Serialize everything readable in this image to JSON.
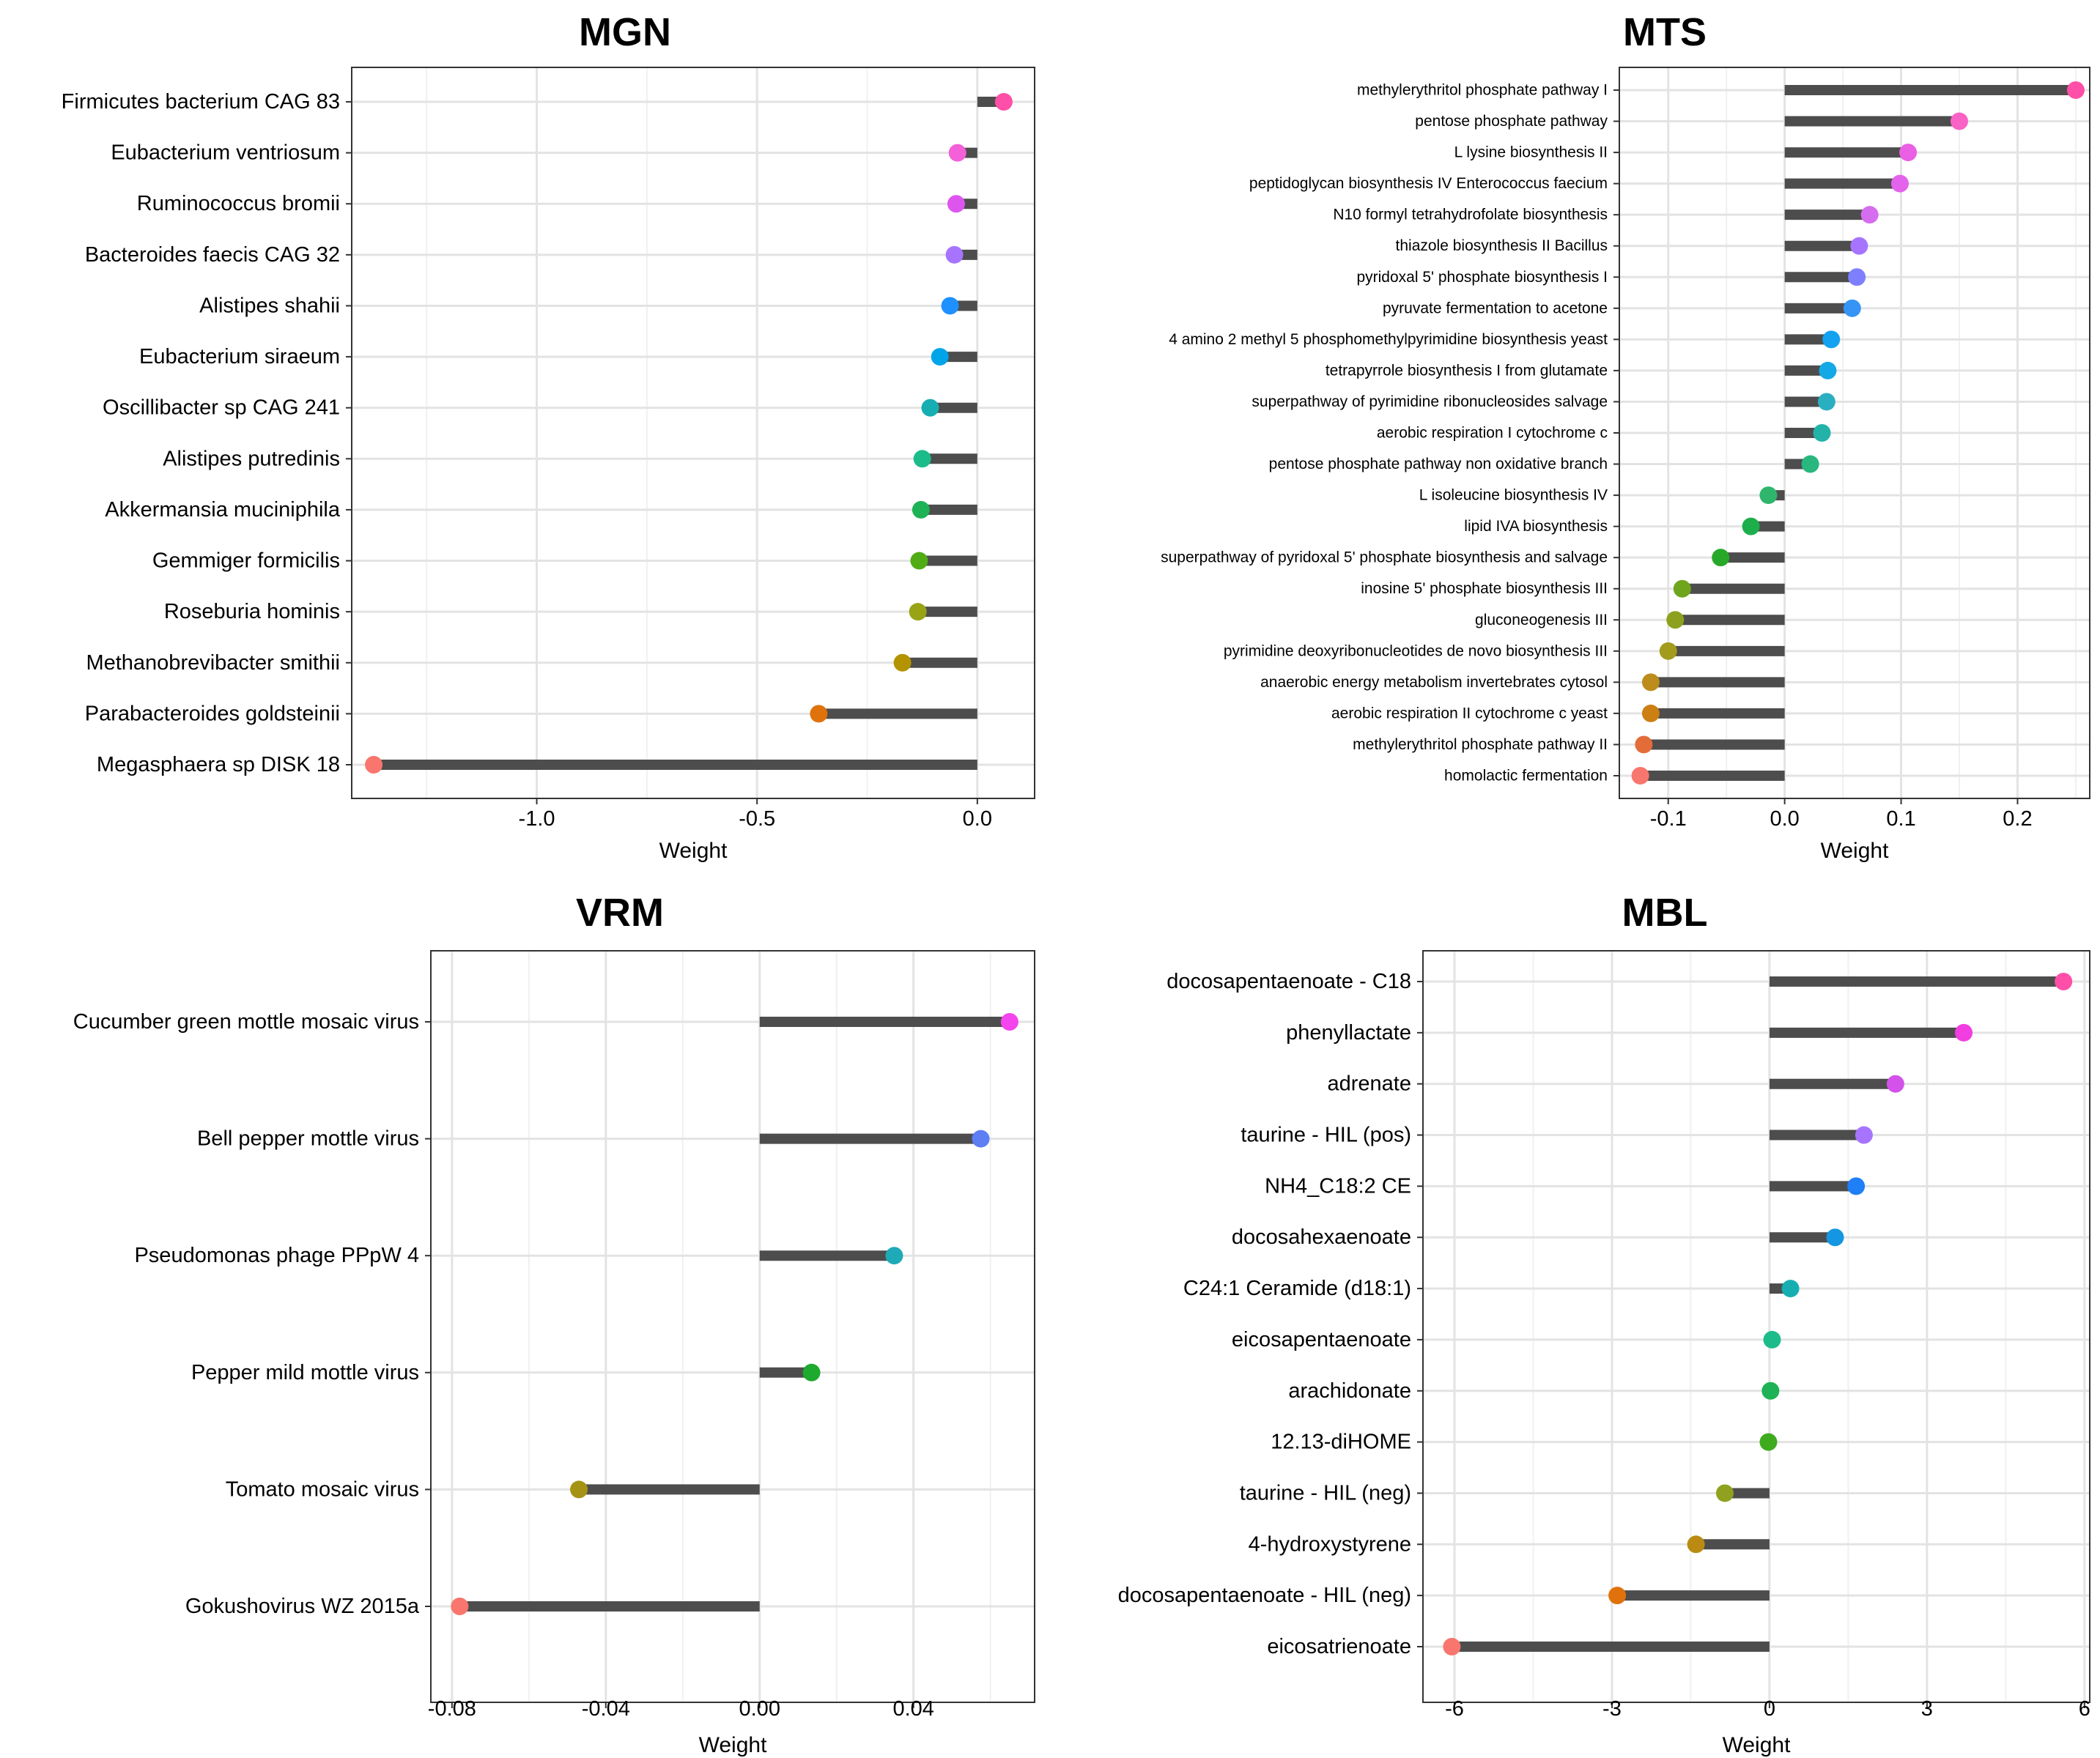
{
  "chart_data": [
    {
      "type": "lollipop",
      "title": "MGN",
      "xlabel": "Weight",
      "ylabel": "",
      "xlim": [
        -1.42,
        0.13
      ],
      "xticks": [
        -1.0,
        -0.5,
        0.0
      ],
      "xtick_labels": [
        "-1.0",
        "-0.5",
        "0.0"
      ],
      "grid": true,
      "categories": [
        "Firmicutes bacterium CAG 83",
        "Eubacterium ventriosum",
        "Ruminococcus bromii",
        "Bacteroides faecis CAG 32",
        "Alistipes shahii",
        "Eubacterium siraeum",
        "Oscillibacter sp CAG 241",
        "Alistipes putredinis",
        "Akkermansia muciniphila",
        "Gemmiger formicilis",
        "Roseburia hominis",
        "Methanobrevibacter smithii",
        "Parabacteroides goldsteinii",
        "Megasphaera sp DISK 18"
      ],
      "values": [
        0.06,
        -0.045,
        -0.048,
        -0.052,
        -0.062,
        -0.085,
        -0.107,
        -0.125,
        -0.128,
        -0.132,
        -0.135,
        -0.17,
        -0.36,
        -1.37
      ],
      "colors": [
        "#FF4FA8",
        "#F460D8",
        "#DD55EE",
        "#A774FF",
        "#1E90FF",
        "#00A4E9",
        "#17AEB2",
        "#1BBC8A",
        "#1DB255",
        "#50AC14",
        "#98A316",
        "#B39300",
        "#E0720B",
        "#F8766D"
      ]
    },
    {
      "type": "lollipop",
      "title": "MTS",
      "xlabel": "Weight",
      "ylabel": "",
      "xlim": [
        -0.142,
        0.262
      ],
      "xticks": [
        -0.1,
        0.0,
        0.1,
        0.2
      ],
      "xtick_labels": [
        "-0.1",
        "0.0",
        "0.1",
        "0.2"
      ],
      "grid": true,
      "categories": [
        "methylerythritol phosphate pathway I",
        "pentose phosphate pathway",
        "L lysine biosynthesis II",
        "peptidoglycan biosynthesis IV Enterococcus faecium",
        "N10 formyl tetrahydrofolate biosynthesis",
        "thiazole biosynthesis II Bacillus",
        "pyridoxal 5' phosphate biosynthesis I",
        "pyruvate fermentation to acetone",
        "4 amino 2 methyl 5 phosphomethylpyrimidine biosynthesis yeast",
        "tetrapyrrole biosynthesis I from glutamate",
        "superpathway of pyrimidine ribonucleosides salvage",
        "aerobic respiration I cytochrome c",
        "pentose phosphate pathway non oxidative branch",
        "L isoleucine biosynthesis IV",
        "lipid IVA biosynthesis",
        "superpathway of pyridoxal 5' phosphate biosynthesis and salvage",
        "inosine 5' phosphate biosynthesis III",
        "gluconeogenesis III",
        "pyrimidine deoxyribonucleotides de novo biosynthesis III",
        "anaerobic energy metabolism invertebrates  cytosol",
        "aerobic respiration II cytochrome c yeast",
        "methylerythritol phosphate pathway II",
        "homolactic fermentation"
      ],
      "values": [
        0.25,
        0.15,
        0.106,
        0.099,
        0.073,
        0.064,
        0.062,
        0.058,
        0.04,
        0.037,
        0.036,
        0.032,
        0.022,
        -0.014,
        -0.029,
        -0.055,
        -0.088,
        -0.094,
        -0.1,
        -0.115,
        -0.115,
        -0.121,
        -0.124
      ],
      "colors": [
        "#FF4FA8",
        "#F963C6",
        "#EA5FE3",
        "#E463EC",
        "#D56DEF",
        "#A774FF",
        "#7E7FFF",
        "#3594F5",
        "#12A2F0",
        "#13A9E7",
        "#2AAFC0",
        "#22B2A8",
        "#28B77F",
        "#30B56C",
        "#1DAE4C",
        "#27A828",
        "#6FA51D",
        "#8EA11E",
        "#A29B1C",
        "#BD8D1C",
        "#CC7F12",
        "#E46C38",
        "#F8766D"
      ]
    },
    {
      "type": "lollipop",
      "title": "VRM",
      "xlabel": "Weight",
      "ylabel": "",
      "xlim": [
        -0.0855,
        0.0715
      ],
      "xticks": [
        -0.08,
        -0.04,
        0.0,
        0.04
      ],
      "xtick_labels": [
        "-0.08",
        "-0.04",
        "0.00",
        "0.04"
      ],
      "grid": true,
      "categories": [
        "Cucumber green mottle mosaic virus",
        "Bell pepper mottle virus",
        "Pseudomonas phage PPpW 4",
        "Pepper mild mottle virus",
        "Tomato mosaic virus",
        "Gokushovirus WZ 2015a"
      ],
      "values": [
        0.065,
        0.0575,
        0.035,
        0.0135,
        -0.047,
        -0.078
      ],
      "colors": [
        "#F444EE",
        "#5C7FF4",
        "#1FAAB8",
        "#1DAA2E",
        "#A69313",
        "#F8766D"
      ]
    },
    {
      "type": "lollipop",
      "title": "MBL",
      "xlabel": "Weight",
      "ylabel": "",
      "xlim": [
        -6.6,
        6.1
      ],
      "xticks": [
        -6,
        -3,
        0,
        3,
        6
      ],
      "xtick_labels": [
        "-6",
        "-3",
        "0",
        "3",
        "6"
      ],
      "grid": true,
      "categories": [
        "docosapentaenoate - C18",
        "phenyllactate",
        "adrenate",
        "taurine - HIL (pos)",
        "NH4_C18:2 CE",
        "docosahexaenoate",
        "C24:1 Ceramide (d18:1)",
        "eicosapentaenoate",
        "arachidonate",
        "12.13-diHOME",
        "taurine - HIL (neg)",
        "4-hydroxystyrene",
        "docosapentaenoate - HIL (neg)",
        "eicosatrienoate"
      ],
      "values": [
        5.6,
        3.7,
        2.4,
        1.8,
        1.65,
        1.25,
        0.4,
        0.05,
        0.02,
        -0.02,
        -0.85,
        -1.4,
        -2.9,
        -6.05
      ],
      "colors": [
        "#FF4FA8",
        "#F23DE0",
        "#D352EA",
        "#A774FF",
        "#1E7FF6",
        "#1496E2",
        "#17AEB2",
        "#1BBC8A",
        "#1DB255",
        "#3EAA1E",
        "#8FA11F",
        "#BB8A13",
        "#E0720B",
        "#F8766D"
      ]
    }
  ]
}
